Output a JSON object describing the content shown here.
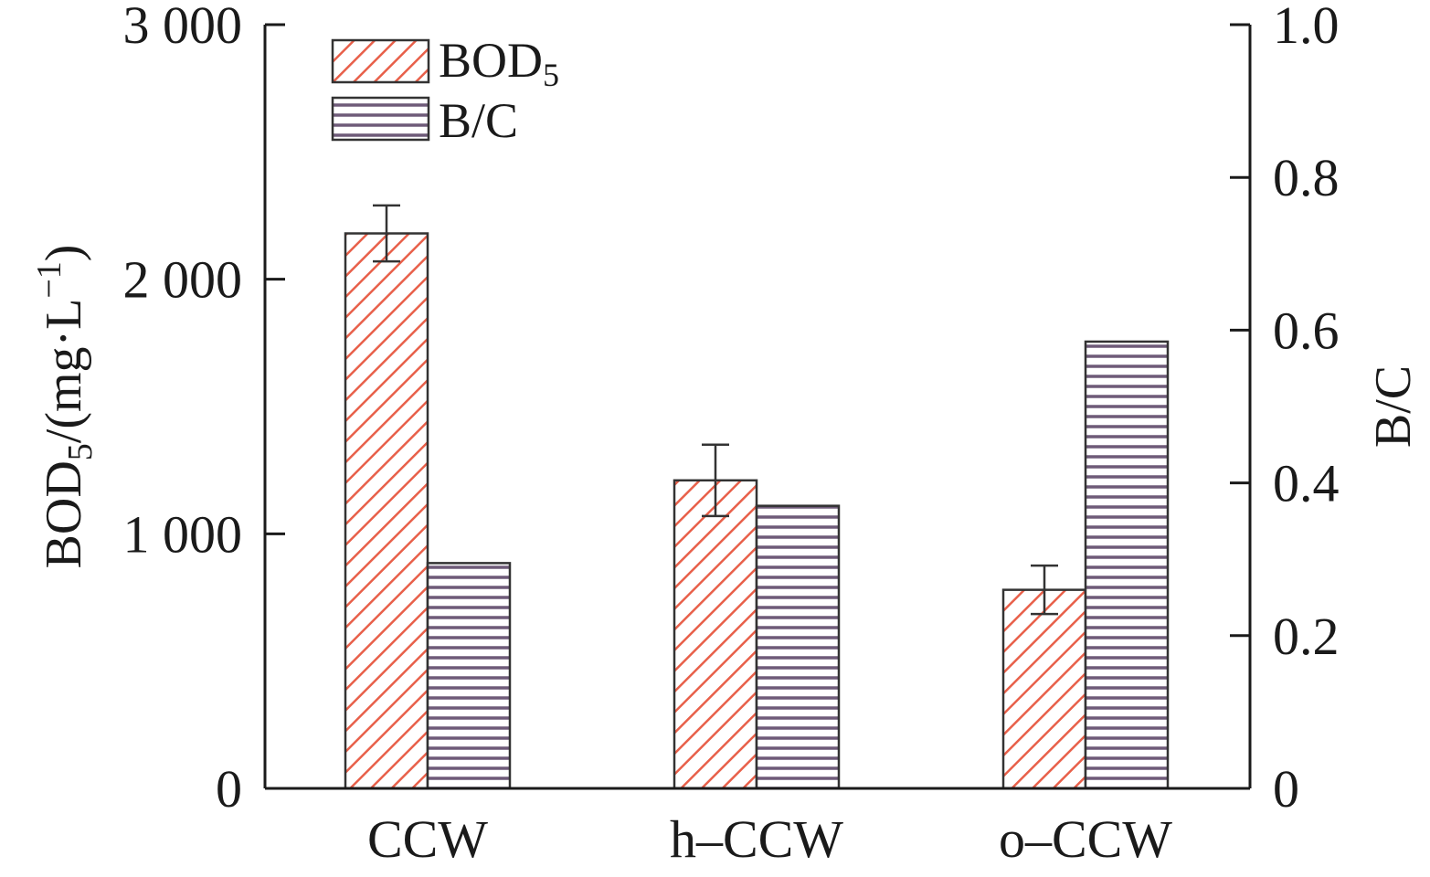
{
  "chart_data": {
    "type": "bar",
    "categories": [
      "CCW",
      "h–CCW",
      "o–CCW"
    ],
    "series": [
      {
        "name": "BOD",
        "name_subscript": "5",
        "axis": "left",
        "values": [
          2180,
          1210,
          780
        ],
        "errors": [
          110,
          140,
          95
        ],
        "color": "#e8604a",
        "pattern": "diagonal-hatch"
      },
      {
        "name": "B/C",
        "axis": "right",
        "values": [
          0.295,
          0.37,
          0.585
        ],
        "color": "#6e5a78",
        "pattern": "horizontal-hatch"
      }
    ],
    "left_axis": {
      "label_main": "BOD",
      "label_sub": "5",
      "label_rest": "/(mg·L",
      "label_sup": "−1",
      "label_end": ")",
      "ylim": [
        0,
        3000
      ],
      "ticks": [
        0,
        1000,
        2000,
        3000
      ],
      "tick_labels": [
        "0",
        "1 000",
        "2 000",
        "3 000"
      ]
    },
    "right_axis": {
      "label": "B/C",
      "ylim": [
        0,
        1.0
      ],
      "ticks": [
        0,
        0.2,
        0.4,
        0.6,
        0.8,
        1.0
      ],
      "tick_labels": [
        "0",
        "0.2",
        "0.4",
        "0.6",
        "0.8",
        "1.0"
      ]
    },
    "legend": {
      "position": "top-left",
      "entries": [
        {
          "label": "BOD",
          "sub": "5"
        },
        {
          "label": "B/C",
          "sub": ""
        }
      ]
    },
    "grid": false
  }
}
